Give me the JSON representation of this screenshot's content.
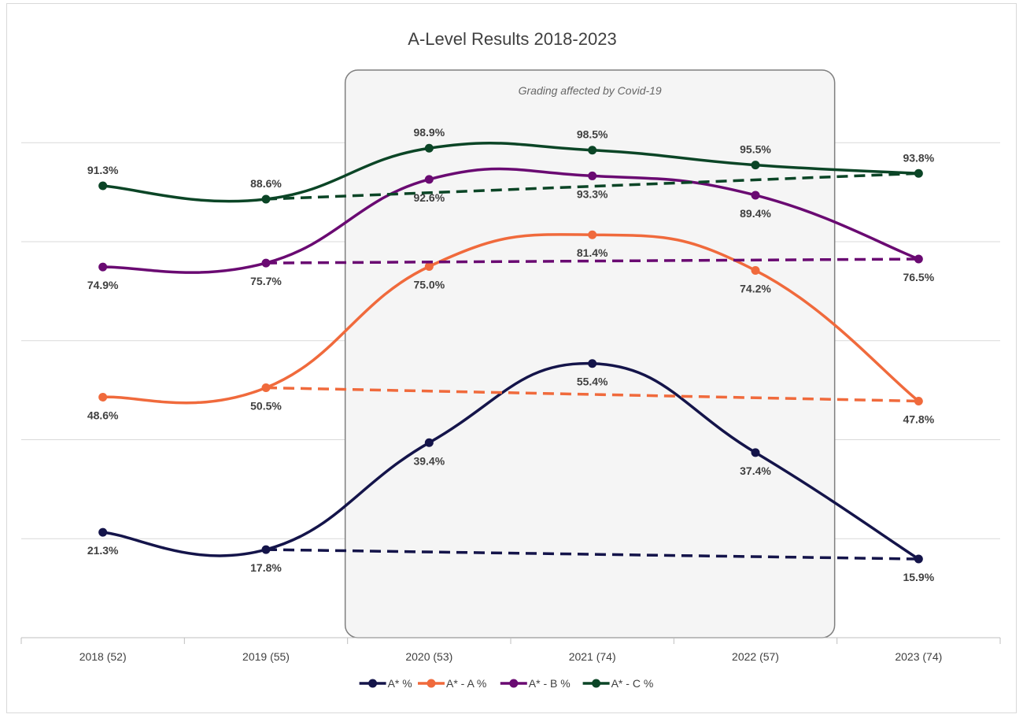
{
  "chart_data": {
    "type": "line",
    "title": "A-Level Results 2018-2023",
    "categories": [
      "2018 (52)",
      "2019 (55)",
      "2020 (53)",
      "2021 (74)",
      "2022 (57)",
      "2023 (74)"
    ],
    "series": [
      {
        "name": "A* %",
        "color": "#14144a",
        "values": [
          21.3,
          17.8,
          39.4,
          55.4,
          37.4,
          15.9
        ],
        "labels": [
          "21.3%",
          "17.8%",
          "39.4%",
          "55.4%",
          "37.4%",
          "15.9%"
        ],
        "label_pos": [
          "below",
          "below",
          "below",
          "below",
          "below",
          "below"
        ],
        "trend_from": 1,
        "trend_values": [
          17.8,
          15.9
        ]
      },
      {
        "name": "A* - A %",
        "color": "#f06a3c",
        "values": [
          48.6,
          50.5,
          75.0,
          81.4,
          74.2,
          47.8
        ],
        "labels": [
          "48.6%",
          "50.5%",
          "75.0%",
          "81.4%",
          "74.2%",
          "47.8%"
        ],
        "label_pos": [
          "below",
          "below",
          "below",
          "below",
          "below",
          "below"
        ],
        "trend_from": 1,
        "trend_values": [
          50.5,
          47.8
        ]
      },
      {
        "name": "A* - B %",
        "color": "#6a0a72",
        "values": [
          74.9,
          75.7,
          92.6,
          93.3,
          89.4,
          76.5
        ],
        "labels": [
          "74.9%",
          "75.7%",
          "92.6%",
          "93.3%",
          "89.4%",
          "76.5%"
        ],
        "label_pos": [
          "below",
          "below",
          "below",
          "below",
          "below",
          "below"
        ],
        "trend_from": 1,
        "trend_values": [
          75.7,
          76.5
        ]
      },
      {
        "name": "A* - C %",
        "color": "#0b4526",
        "values": [
          91.3,
          88.6,
          98.9,
          98.5,
          95.5,
          93.8
        ],
        "labels": [
          "91.3%",
          "88.6%",
          "98.9%",
          "98.5%",
          "95.5%",
          "93.8%"
        ],
        "label_pos": [
          "above",
          "above",
          "above",
          "above",
          "above",
          "above"
        ],
        "trend_from": 1,
        "trend_values": [
          88.6,
          93.8
        ]
      }
    ],
    "annotation": {
      "text": "Grading affected by Covid-19",
      "from_category": 2,
      "to_category": 4
    },
    "ylim": [
      0,
      115
    ],
    "y_gridlines": [
      20,
      40,
      60,
      80,
      100
    ],
    "grid": true,
    "legend": "bottom-center"
  }
}
